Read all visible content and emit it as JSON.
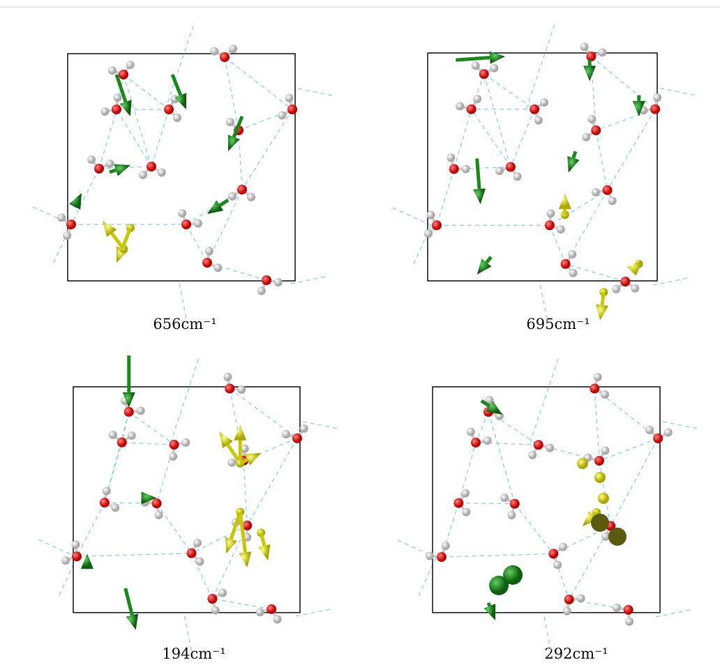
{
  "panels": [
    {
      "label": "656cm⁻¹"
    },
    {
      "label": "695cm⁻¹"
    },
    {
      "label": "194cm⁻¹"
    },
    {
      "label": "292cm⁻¹"
    }
  ]
}
